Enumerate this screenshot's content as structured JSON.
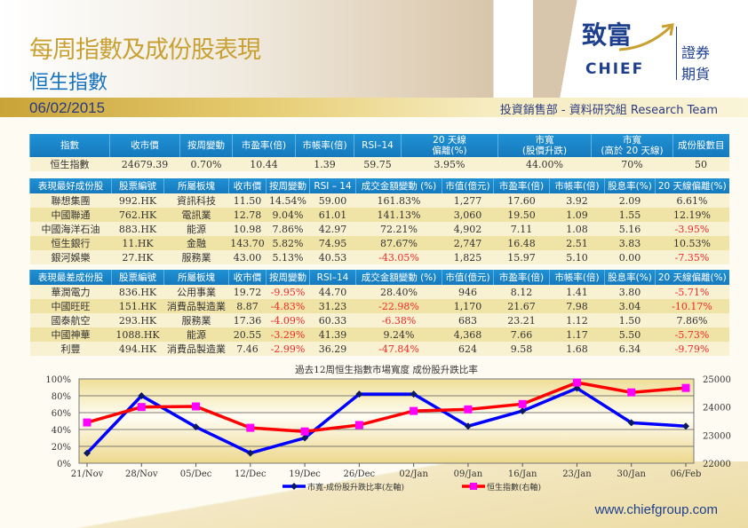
{
  "header": {
    "title": "每周指數及成份股表現",
    "subtitle": "恒生指數",
    "date": "06/02/2015",
    "team": "投資銷售部 - 資料研究組 Research Team"
  },
  "logo": {
    "chinese": "致富",
    "english": "CHIEF",
    "tag1": "證券",
    "tag2": "期貨"
  },
  "index_table": {
    "headers": [
      "指數",
      "收市價",
      "按周變動",
      "市盈率(倍)",
      "市帳率(倍)",
      "RSI–14",
      "20 天線\n偏離(%)",
      "市寬\n(股價升跌)",
      "市寬\n(高於 20 天線)",
      "成份股數目"
    ],
    "rows": [
      [
        "恒生指數",
        "24679.39",
        "0.70%",
        "10.44",
        "1.39",
        "59.75",
        "3.95%",
        "44.00%",
        "70%",
        "50"
      ]
    ]
  },
  "best_table": {
    "headers": [
      "表現最好成份股",
      "股票編號",
      "所屬板塊",
      "收市價",
      "按周變動",
      "RSI – 14",
      "成交金額變動 (%)",
      "市值(億元)",
      "市盈率(倍)",
      "市帳率(倍)",
      "股息率(%)",
      "20 天線偏離(%)"
    ],
    "rows": [
      [
        "聯想集團",
        "992.HK",
        "資訊科技",
        "11.50",
        "14.54%",
        "59.00",
        "161.83%",
        "1,277",
        "17.60",
        "3.92",
        "2.09",
        "6.61%"
      ],
      [
        "中國聯通",
        "762.HK",
        "電訊業",
        "12.78",
        "9.04%",
        "61.01",
        "141.13%",
        "3,060",
        "19.50",
        "1.09",
        "1.55",
        "12.19%"
      ],
      [
        "中國海洋石油",
        "883.HK",
        "能源",
        "10.98",
        "7.86%",
        "42.97",
        "72.21%",
        "4,902",
        "7.11",
        "1.08",
        "5.16",
        "-3.95%"
      ],
      [
        "恒生銀行",
        "11.HK",
        "金融",
        "143.70",
        "5.82%",
        "74.95",
        "87.67%",
        "2,747",
        "16.48",
        "2.51",
        "3.83",
        "10.53%"
      ],
      [
        "銀河娛樂",
        "27.HK",
        "服務業",
        "43.00",
        "5.13%",
        "40.53",
        "-43.05%",
        "1,825",
        "15.97",
        "5.10",
        "0.00",
        "-7.35%"
      ]
    ]
  },
  "worst_table": {
    "headers": [
      "表現最差成份股",
      "股票編號",
      "所屬板塊",
      "收市價",
      "按周變動",
      "RSI–14",
      "成交金額變動 (%)",
      "市值(億元)",
      "市盈率(倍)",
      "市帳率(倍)",
      "股息率(%)",
      "20 天線偏離(%)"
    ],
    "rows": [
      [
        "華潤電力",
        "836.HK",
        "公用事業",
        "19.72",
        "-9.95%",
        "44.70",
        "28.40%",
        "946",
        "8.12",
        "1.41",
        "3.80",
        "-5.71%"
      ],
      [
        "中國旺旺",
        "151.HK",
        "消費品製造業",
        "8.87",
        "-4.83%",
        "31.23",
        "-22.98%",
        "1,170",
        "21.67",
        "7.98",
        "3.04",
        "-10.17%"
      ],
      [
        "國泰航空",
        "293.HK",
        "服務業",
        "17.36",
        "-4.09%",
        "60.33",
        "-6.38%",
        "683",
        "23.21",
        "1.12",
        "1.50",
        "7.86%"
      ],
      [
        "中國神華",
        "1088.HK",
        "能源",
        "20.55",
        "-3.29%",
        "41.39",
        "9.24%",
        "4,368",
        "7.66",
        "1.17",
        "5.50",
        "-5.73%"
      ],
      [
        "利豐",
        "494.HK",
        "消費品製造業",
        "7.46",
        "-2.99%",
        "36.29",
        "-47.84%",
        "624",
        "9.58",
        "1.68",
        "6.34",
        "-9.79%"
      ]
    ]
  },
  "chart_data": {
    "type": "line",
    "title": "過去12周恒生指數市場寬度 成份股升跌比率",
    "categories": [
      "21/Nov",
      "28/Nov",
      "05/Dec",
      "12/Dec",
      "19/Dec",
      "26/Dec",
      "02/Jan",
      "09/Jan",
      "16/Jan",
      "23/Jan",
      "30/Jan",
      "06/Feb"
    ],
    "y_left": {
      "ticks": [
        "0%",
        "20%",
        "40%",
        "60%",
        "80%",
        "100%"
      ],
      "range": [
        0,
        100
      ]
    },
    "y_right": {
      "ticks": [
        "22000",
        "23000",
        "24000",
        "25000"
      ],
      "range": [
        22000,
        25000
      ]
    },
    "grid": true,
    "legend_placement": "bottom",
    "series": [
      {
        "name": "市寬-成份股升跌比率(左軸)",
        "axis": "left",
        "color": "#0000ff",
        "marker": "diamond",
        "values": [
          12,
          80,
          43,
          12,
          30,
          82,
          82,
          44,
          62,
          89,
          48,
          44
        ]
      },
      {
        "name": "恒生指數(右軸)",
        "axis": "right",
        "color": "#ff0000",
        "marker": "square",
        "marker_color": "#ff00ff",
        "values": [
          23450,
          24000,
          24020,
          23260,
          23130,
          23360,
          23860,
          23915,
          24105,
          24870,
          24520,
          24679.39
        ]
      }
    ]
  },
  "footer": {
    "url": "www.chiefgroup.com"
  },
  "colors": {
    "header_blue": "#1a86c8",
    "title_gold": "#c9a032",
    "negative_red": "#ee2a2a",
    "row_light": "#f8f1d2",
    "row_dark": "#f0e3a6"
  }
}
